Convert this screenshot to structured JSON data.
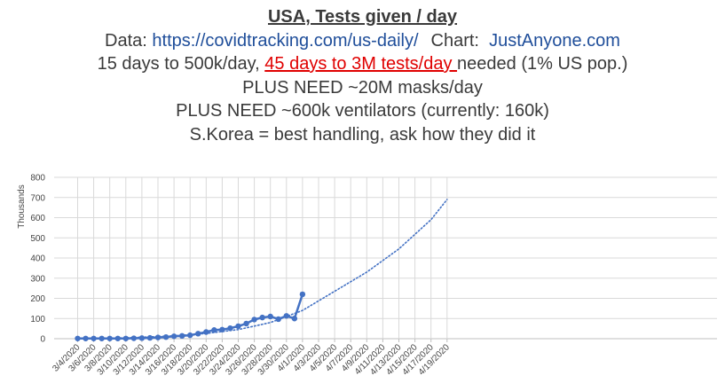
{
  "header": {
    "title": "USA, Tests given / day",
    "data_prefix": "Data: ",
    "data_url": "https://covidtracking.com/us-daily/",
    "chart_prefix": "Chart: ",
    "chart_site": "JustAnyone.com",
    "line3_a": "15 days to 500k/day, ",
    "line3_b": "45 days to 3M tests/day ",
    "line3_c": "needed (1% US pop.)",
    "line4": "PLUS NEED ~20M masks/day",
    "line5": "PLUS NEED ~600k ventilators (currently: 160k)",
    "line6": "S.Korea = best handling, ask how they did it"
  },
  "chart_data": {
    "type": "line",
    "ylabel": "Thousands",
    "ylim": [
      0,
      800
    ],
    "yticks": [
      "0",
      "100",
      "200",
      "300",
      "400",
      "500",
      "600",
      "700",
      "800"
    ],
    "x_tick_labels": [
      "3/4/2020",
      "3/6/2020",
      "3/8/2020",
      "3/10/2020",
      "3/12/2020",
      "3/14/2020",
      "3/16/2020",
      "3/18/2020",
      "3/20/2020",
      "3/22/2020",
      "3/24/2020",
      "3/26/2020",
      "3/28/2020",
      "3/30/2020",
      "4/1/2020",
      "4/3/2020",
      "4/5/2020",
      "4/7/2020",
      "4/9/2020",
      "4/11/2020",
      "4/13/2020",
      "4/15/2020",
      "4/17/2020",
      "4/19/2020"
    ],
    "grid": true,
    "series": [
      {
        "style": "solid-with-markers",
        "color": "#4472c4",
        "x": [
          "3/4/2020",
          "3/5/2020",
          "3/6/2020",
          "3/7/2020",
          "3/8/2020",
          "3/9/2020",
          "3/10/2020",
          "3/11/2020",
          "3/12/2020",
          "3/13/2020",
          "3/14/2020",
          "3/15/2020",
          "3/16/2020",
          "3/17/2020",
          "3/18/2020",
          "3/19/2020",
          "3/20/2020",
          "3/21/2020",
          "3/22/2020",
          "3/23/2020",
          "3/24/2020",
          "3/25/2020",
          "3/26/2020",
          "3/27/2020",
          "3/28/2020",
          "3/29/2020",
          "3/30/2020",
          "3/31/2020",
          "4/1/2020"
        ],
        "values": [
          1,
          1,
          1,
          1,
          1,
          1,
          1,
          2,
          3,
          4,
          6,
          8,
          12,
          14,
          17,
          25,
          33,
          43,
          45,
          52,
          62,
          75,
          95,
          105,
          110,
          97,
          113,
          100,
          220
        ]
      },
      {
        "style": "dotted-trendline",
        "color": "#4472c4",
        "x": [
          "3/4/2020",
          "3/10/2020",
          "3/16/2020",
          "3/20/2020",
          "3/24/2020",
          "3/28/2020",
          "4/1/2020",
          "4/5/2020",
          "4/9/2020",
          "4/13/2020",
          "4/17/2020",
          "4/19/2020"
        ],
        "values": [
          0,
          4,
          14,
          26,
          45,
          80,
          140,
          235,
          330,
          445,
          590,
          690
        ]
      }
    ]
  }
}
